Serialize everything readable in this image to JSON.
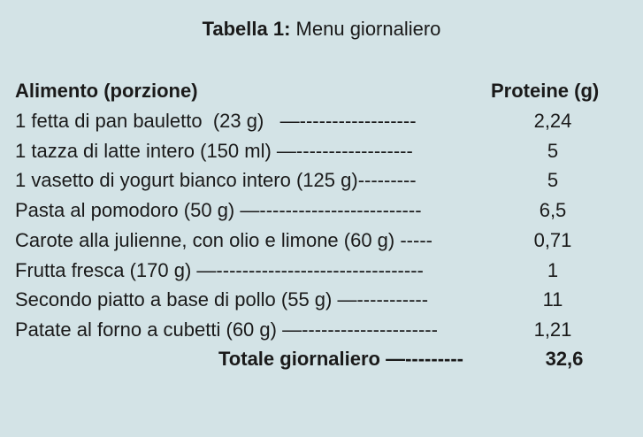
{
  "title": {
    "label": "Tabella 1:",
    "text": " Menu giornaliero"
  },
  "columns": {
    "food": "Alimento (porzione)",
    "protein": "Proteine (g)"
  },
  "rows": [
    {
      "food": "1 fetta di pan bauletto  (23 g)   ",
      "leader": "—------------------",
      "protein": "2,24"
    },
    {
      "food": "1 tazza di latte intero (150 ml) ",
      "leader": "—------------------",
      "protein": "5"
    },
    {
      "food": "1 vasetto di yogurt bianco intero (125 g)",
      "leader": "---------",
      "protein": "5"
    },
    {
      "food": "Pasta al pomodoro (50 g) ",
      "leader": "—-------------------------",
      "protein": "6,5"
    },
    {
      "food": "Carote alla julienne, con olio e limone (60 g) ",
      "leader": "-----",
      "protein": "0,71"
    },
    {
      "food": "Frutta fresca (170 g) ",
      "leader": "—--------------------------------",
      "protein": "1"
    },
    {
      "food": "Secondo piatto a base di pollo (55 g) ",
      "leader": "—-----------",
      "protein": "11"
    },
    {
      "food": "Patate al forno a cubetti (60 g) ",
      "leader": "—---------------------",
      "protein": "1,21"
    }
  ],
  "total": {
    "label": "Totale giornaliero ",
    "leader": "—---------",
    "protein": "32,6"
  }
}
